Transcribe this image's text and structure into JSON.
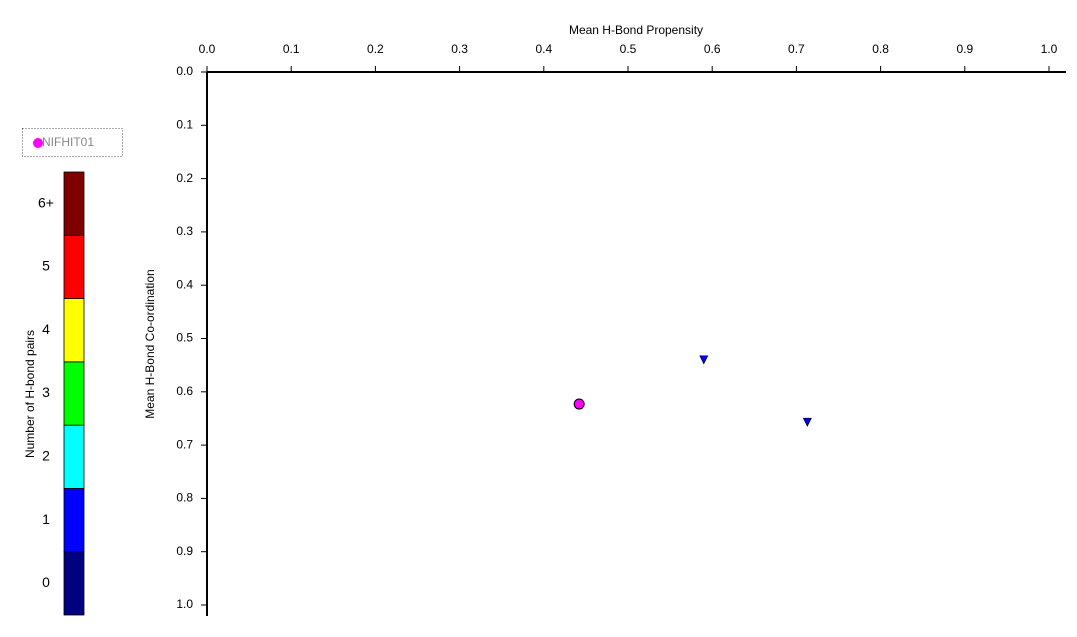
{
  "chart_data": {
    "type": "scatter",
    "x_label": "Mean H-Bond Propensity",
    "y_label": "Mean H-Bond Co-ordination",
    "x_axis_position": "top",
    "y_inverted": true,
    "xlim": [
      0,
      1
    ],
    "ylim": [
      0,
      1
    ],
    "xticks": [
      {
        "value": 0,
        "label": "0.0"
      },
      0.1,
      0.2,
      0.3,
      0.4,
      0.5,
      0.6,
      0.7,
      0.8,
      0.9,
      {
        "value": 1,
        "label": "1.0"
      }
    ],
    "yticks": [
      {
        "value": 0,
        "label": "0.0"
      },
      0.1,
      0.2,
      0.3,
      0.4,
      0.5,
      0.6,
      0.7,
      0.8,
      0.9,
      {
        "value": 1,
        "label": "1.0"
      }
    ],
    "series": [
      {
        "name": "NIFHIT01",
        "color": "#ff00ff",
        "marker": "circle",
        "x": [
          0.442
        ],
        "values": [
          0.623
        ]
      },
      {
        "color": "#0000ff",
        "marker": "triangle-down",
        "x": [
          0.59,
          0.713
        ],
        "values": [
          0.54,
          0.657
        ]
      }
    ],
    "colorbar": {
      "title": "Number of H-bond pairs",
      "labels": [
        "0",
        "1",
        "2",
        "3",
        "4",
        "5",
        "6+"
      ],
      "colors": [
        "#000080",
        "#0000ff",
        "#00ffff",
        "#00ff00",
        "#ffff00",
        "#ff0000",
        "#800000"
      ]
    }
  }
}
